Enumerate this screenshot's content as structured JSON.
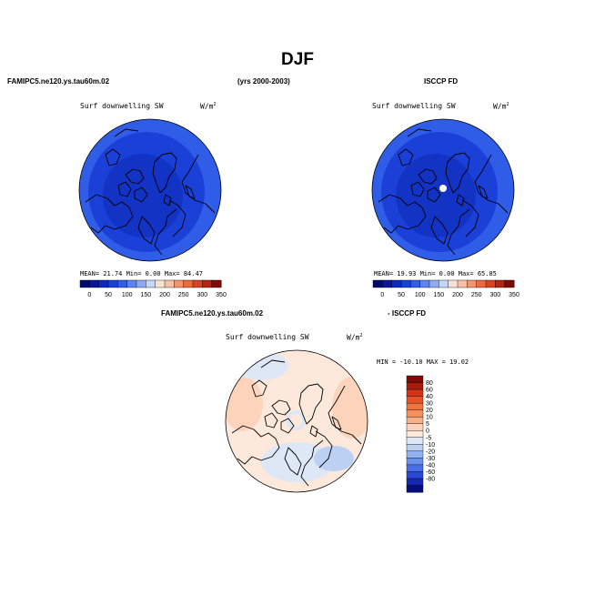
{
  "title": "DJF",
  "headers": {
    "model": "FAMIPC5.ne120.ys.tau60m.02",
    "years": "(yrs 2000-2003)",
    "obs": "ISCCP FD",
    "diff_model": "FAMIPC5.ne120.ys.tau60m.02",
    "diff_obs": "- ISCCP FD"
  },
  "panels": [
    {
      "id": "model",
      "variable": "Surf downwelling SW",
      "units_base": "W/m",
      "units_exp": "2",
      "stats": {
        "mean_label": "MEAN=",
        "mean": "21.74",
        "min_label": "Min=",
        "min": "0.00",
        "max_label": "Max=",
        "max": "84.47"
      }
    },
    {
      "id": "obs",
      "variable": "Surf downwelling SW",
      "units_base": "W/m",
      "units_exp": "2",
      "stats": {
        "mean_label": "MEAN=",
        "mean": "19.93",
        "min_label": "Min=",
        "min": "0.00",
        "max_label": "Max=",
        "max": "65.85"
      }
    },
    {
      "id": "diff",
      "variable": "Surf downwelling SW",
      "units_base": "W/m",
      "units_exp": "2",
      "minmax": "MIN = -10.10  MAX =  19.02"
    }
  ],
  "abs_colorbar": {
    "labels": [
      "0",
      "50",
      "100",
      "150",
      "200",
      "250",
      "300",
      "350"
    ],
    "colors": [
      "#000a6e",
      "#06179a",
      "#0b2ac0",
      "#1a40d8",
      "#2f5de8",
      "#5c84f0",
      "#8eaaf4",
      "#c5d6fa",
      "#fbe3d4",
      "#f8c1a3",
      "#f3966c",
      "#ea6a3b",
      "#d84420",
      "#b52410",
      "#7d0b05"
    ]
  },
  "diff_colorbar": {
    "labels": [
      "80",
      "60",
      "40",
      "30",
      "20",
      "10",
      "5",
      "0",
      "-5",
      "-10",
      "-20",
      "-30",
      "-40",
      "-60",
      "-80"
    ],
    "colors": [
      "#7d0b05",
      "#a81c0c",
      "#d43415",
      "#ea5327",
      "#f1743f",
      "#f5915e",
      "#f8b089",
      "#fcd4bc",
      "#fde9dc",
      "#dde7f6",
      "#bcd0f3",
      "#92b1f0",
      "#6b90ec",
      "#4a6ee6",
      "#2b48d8",
      "#1428b0",
      "#040d7a"
    ]
  },
  "map_colors": {
    "abs_outer": "#2f5de8",
    "abs_inner": "#1a40d8",
    "abs_core": "#1233c4",
    "diff_base": "#fde9dc",
    "diff_warm": "#fcd4bc",
    "diff_cool": "#dde7f6",
    "diff_blue": "#bcd0f3"
  }
}
